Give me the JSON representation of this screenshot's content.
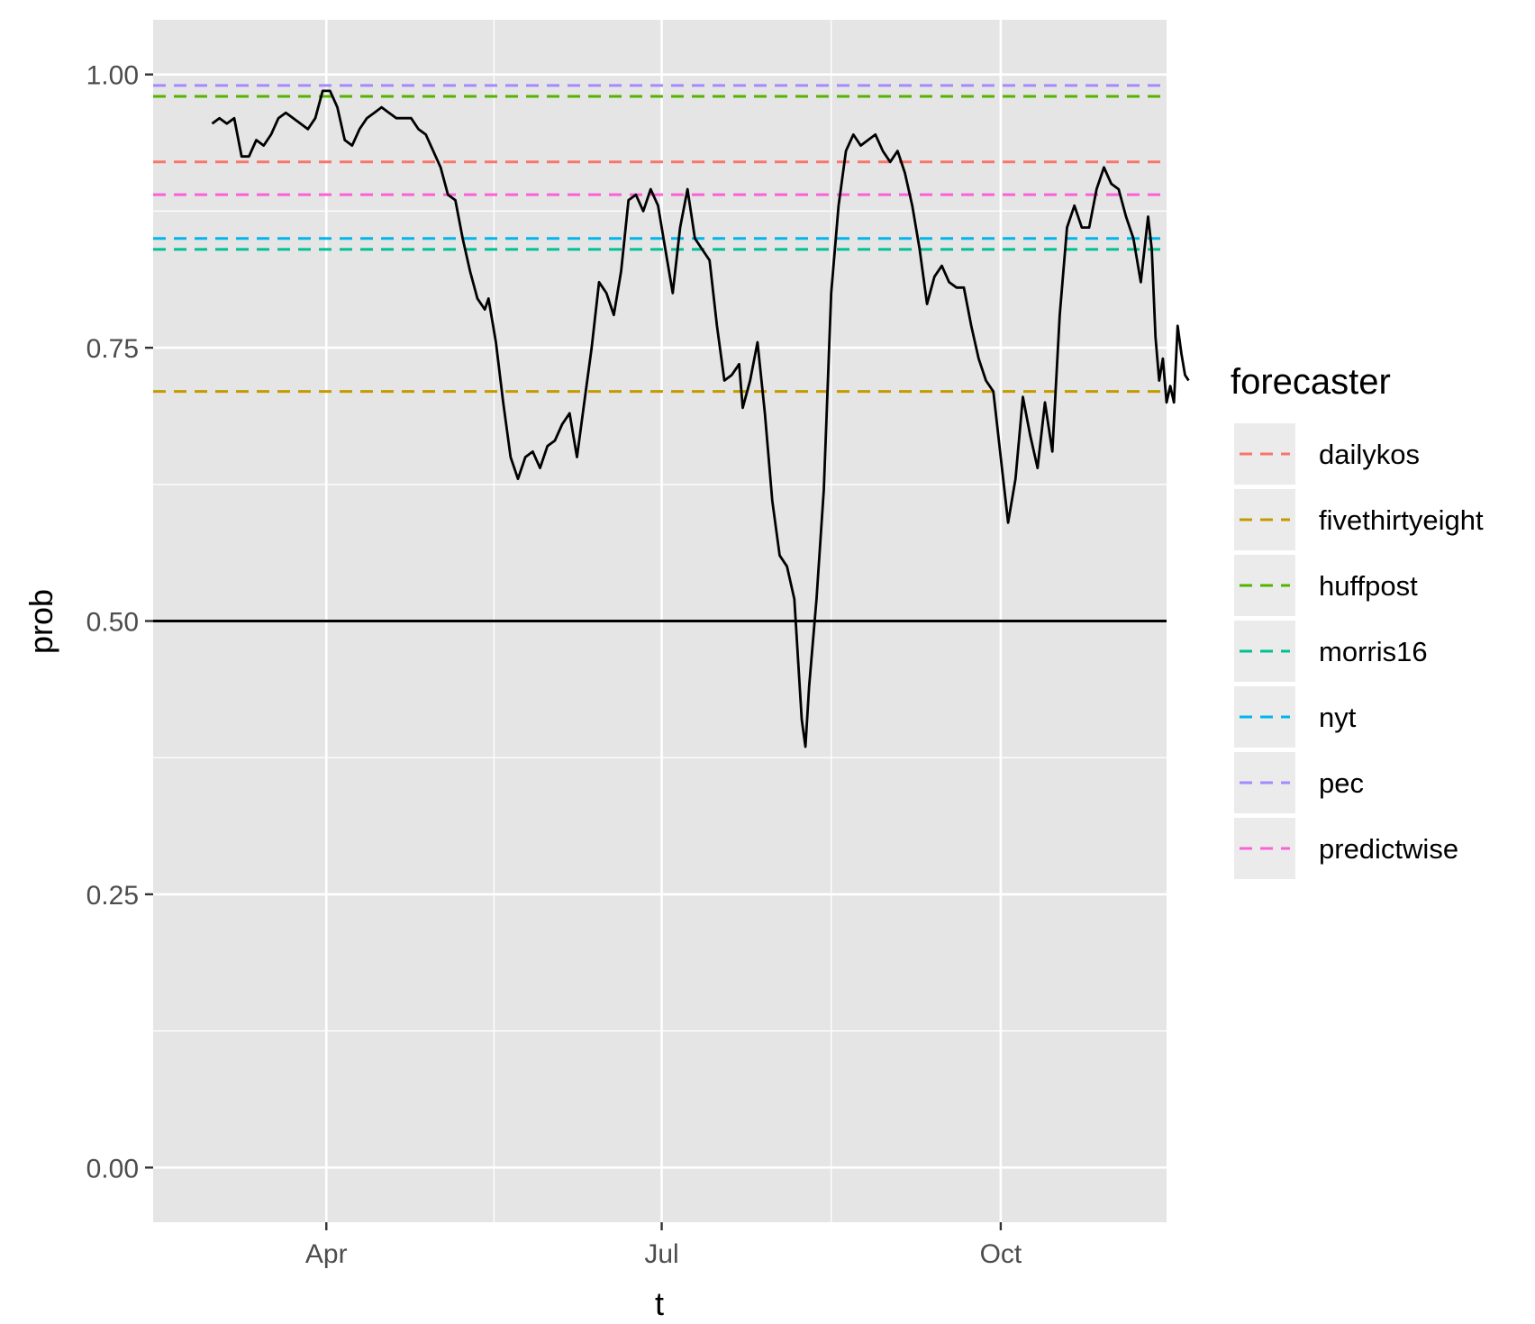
{
  "chart_data": {
    "type": "line",
    "title": "",
    "xlabel": "t",
    "ylabel": "prob",
    "x_ticks": [
      "Apr",
      "Jul",
      "Oct"
    ],
    "x_tick_dates": [
      "2016-04-01",
      "2016-07-01",
      "2016-10-01"
    ],
    "xlim": [
      "2016-02-14",
      "2016-11-15"
    ],
    "ylim": [
      -0.05,
      1.05
    ],
    "y_ticks": [
      0.0,
      0.25,
      0.5,
      0.75,
      1.0
    ],
    "y_tick_labels": [
      "0.00",
      "0.25",
      "0.50",
      "0.75",
      "1.00"
    ],
    "grid": true,
    "background": "#e5e5e5",
    "reference_line": {
      "y": 0.5,
      "color": "#000000"
    },
    "legend": {
      "title": "forecaster",
      "position": "right",
      "entries": [
        {
          "name": "dailykos",
          "value": 0.92,
          "color": "#f8766d"
        },
        {
          "name": "fivethirtyeight",
          "value": 0.71,
          "color": "#c49a00"
        },
        {
          "name": "huffpost",
          "value": 0.98,
          "color": "#53b400"
        },
        {
          "name": "morris16",
          "value": 0.84,
          "color": "#00c094"
        },
        {
          "name": "nyt",
          "value": 0.85,
          "color": "#00b6eb"
        },
        {
          "name": "pec",
          "value": 0.99,
          "color": "#a58aff"
        },
        {
          "name": "predictwise",
          "value": 0.89,
          "color": "#fb61d7"
        }
      ]
    },
    "series": [
      {
        "color": "#000000",
        "points": [
          [
            "2016-03-01",
            0.955
          ],
          [
            "2016-03-03",
            0.96
          ],
          [
            "2016-03-05",
            0.955
          ],
          [
            "2016-03-07",
            0.96
          ],
          [
            "2016-03-09",
            0.925
          ],
          [
            "2016-03-11",
            0.925
          ],
          [
            "2016-03-13",
            0.94
          ],
          [
            "2016-03-15",
            0.935
          ],
          [
            "2016-03-17",
            0.945
          ],
          [
            "2016-03-19",
            0.96
          ],
          [
            "2016-03-21",
            0.965
          ],
          [
            "2016-03-23",
            0.96
          ],
          [
            "2016-03-25",
            0.955
          ],
          [
            "2016-03-27",
            0.95
          ],
          [
            "2016-03-29",
            0.96
          ],
          [
            "2016-03-31",
            0.985
          ],
          [
            "2016-04-02",
            0.985
          ],
          [
            "2016-04-04",
            0.97
          ],
          [
            "2016-04-06",
            0.94
          ],
          [
            "2016-04-08",
            0.935
          ],
          [
            "2016-04-10",
            0.95
          ],
          [
            "2016-04-12",
            0.96
          ],
          [
            "2016-04-14",
            0.965
          ],
          [
            "2016-04-16",
            0.97
          ],
          [
            "2016-04-18",
            0.965
          ],
          [
            "2016-04-20",
            0.96
          ],
          [
            "2016-04-22",
            0.96
          ],
          [
            "2016-04-24",
            0.96
          ],
          [
            "2016-04-26",
            0.95
          ],
          [
            "2016-04-28",
            0.945
          ],
          [
            "2016-04-30",
            0.93
          ],
          [
            "2016-05-02",
            0.915
          ],
          [
            "2016-05-04",
            0.89
          ],
          [
            "2016-05-06",
            0.885
          ],
          [
            "2016-05-08",
            0.85
          ],
          [
            "2016-05-10",
            0.82
          ],
          [
            "2016-05-12",
            0.795
          ],
          [
            "2016-05-14",
            0.785
          ],
          [
            "2016-05-15",
            0.795
          ],
          [
            "2016-05-17",
            0.755
          ],
          [
            "2016-05-19",
            0.7
          ],
          [
            "2016-05-21",
            0.65
          ],
          [
            "2016-05-23",
            0.63
          ],
          [
            "2016-05-25",
            0.65
          ],
          [
            "2016-05-27",
            0.655
          ],
          [
            "2016-05-29",
            0.64
          ],
          [
            "2016-05-31",
            0.66
          ],
          [
            "2016-06-02",
            0.665
          ],
          [
            "2016-06-04",
            0.68
          ],
          [
            "2016-06-06",
            0.69
          ],
          [
            "2016-06-08",
            0.65
          ],
          [
            "2016-06-10",
            0.7
          ],
          [
            "2016-06-12",
            0.75
          ],
          [
            "2016-06-14",
            0.81
          ],
          [
            "2016-06-16",
            0.8
          ],
          [
            "2016-06-18",
            0.78
          ],
          [
            "2016-06-20",
            0.82
          ],
          [
            "2016-06-22",
            0.885
          ],
          [
            "2016-06-24",
            0.89
          ],
          [
            "2016-06-26",
            0.875
          ],
          [
            "2016-06-28",
            0.895
          ],
          [
            "2016-06-30",
            0.88
          ],
          [
            "2016-07-02",
            0.84
          ],
          [
            "2016-07-04",
            0.8
          ],
          [
            "2016-07-06",
            0.86
          ],
          [
            "2016-07-08",
            0.895
          ],
          [
            "2016-07-10",
            0.85
          ],
          [
            "2016-07-12",
            0.84
          ],
          [
            "2016-07-14",
            0.83
          ],
          [
            "2016-07-16",
            0.77
          ],
          [
            "2016-07-18",
            0.72
          ],
          [
            "2016-07-20",
            0.725
          ],
          [
            "2016-07-22",
            0.735
          ],
          [
            "2016-07-23",
            0.695
          ],
          [
            "2016-07-25",
            0.72
          ],
          [
            "2016-07-27",
            0.755
          ],
          [
            "2016-07-29",
            0.69
          ],
          [
            "2016-07-31",
            0.61
          ],
          [
            "2016-08-02",
            0.56
          ],
          [
            "2016-08-04",
            0.55
          ],
          [
            "2016-08-06",
            0.52
          ],
          [
            "2016-08-08",
            0.41
          ],
          [
            "2016-08-09",
            0.385
          ],
          [
            "2016-08-10",
            0.44
          ],
          [
            "2016-08-12",
            0.52
          ],
          [
            "2016-08-14",
            0.62
          ],
          [
            "2016-08-16",
            0.8
          ],
          [
            "2016-08-18",
            0.88
          ],
          [
            "2016-08-20",
            0.93
          ],
          [
            "2016-08-22",
            0.945
          ],
          [
            "2016-08-24",
            0.935
          ],
          [
            "2016-08-26",
            0.94
          ],
          [
            "2016-08-28",
            0.945
          ],
          [
            "2016-08-30",
            0.93
          ],
          [
            "2016-09-01",
            0.92
          ],
          [
            "2016-09-03",
            0.93
          ],
          [
            "2016-09-05",
            0.91
          ],
          [
            "2016-09-07",
            0.88
          ],
          [
            "2016-09-09",
            0.84
          ],
          [
            "2016-09-11",
            0.79
          ],
          [
            "2016-09-13",
            0.815
          ],
          [
            "2016-09-15",
            0.825
          ],
          [
            "2016-09-17",
            0.81
          ],
          [
            "2016-09-19",
            0.805
          ],
          [
            "2016-09-21",
            0.805
          ],
          [
            "2016-09-23",
            0.77
          ],
          [
            "2016-09-25",
            0.74
          ],
          [
            "2016-09-27",
            0.72
          ],
          [
            "2016-09-29",
            0.71
          ],
          [
            "2016-10-01",
            0.65
          ],
          [
            "2016-10-03",
            0.59
          ],
          [
            "2016-10-05",
            0.63
          ],
          [
            "2016-10-07",
            0.705
          ],
          [
            "2016-10-09",
            0.67
          ],
          [
            "2016-10-11",
            0.64
          ],
          [
            "2016-10-13",
            0.7
          ],
          [
            "2016-10-15",
            0.655
          ],
          [
            "2016-10-17",
            0.78
          ],
          [
            "2016-10-19",
            0.86
          ],
          [
            "2016-10-21",
            0.88
          ],
          [
            "2016-10-23",
            0.86
          ],
          [
            "2016-10-25",
            0.86
          ],
          [
            "2016-10-27",
            0.895
          ],
          [
            "2016-10-29",
            0.915
          ],
          [
            "2016-10-31",
            0.9
          ],
          [
            "2016-11-02",
            0.895
          ],
          [
            "2016-11-04",
            0.87
          ],
          [
            "2016-11-06",
            0.85
          ],
          [
            "2016-11-08",
            0.81
          ],
          [
            "2016-11-10",
            0.87
          ],
          [
            "2016-11-11",
            0.84
          ],
          [
            "2016-11-12",
            0.76
          ],
          [
            "2016-11-13",
            0.72
          ],
          [
            "2016-11-14",
            0.74
          ],
          [
            "2016-11-15",
            0.7
          ],
          [
            "2016-11-16",
            0.715
          ],
          [
            "2016-11-17",
            0.7
          ],
          [
            "2016-11-18",
            0.77
          ],
          [
            "2016-11-19",
            0.745
          ],
          [
            "2016-11-20",
            0.725
          ],
          [
            "2016-11-21",
            0.72
          ]
        ]
      }
    ]
  }
}
